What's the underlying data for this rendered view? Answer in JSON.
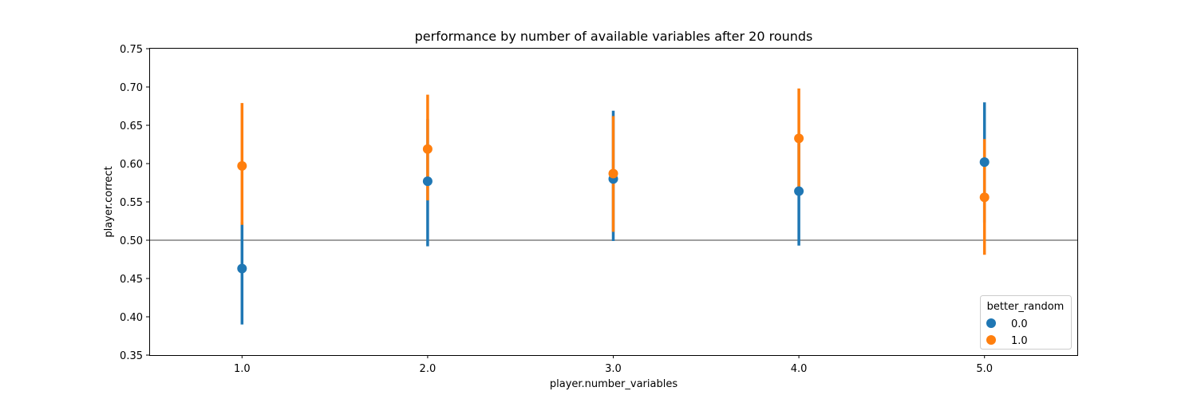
{
  "chart_data": {
    "type": "scatter",
    "title": "performance by number of available variables after 20 rounds",
    "xlabel": "player.number_variables",
    "ylabel": "player.correct",
    "categories": [
      "1.0",
      "2.0",
      "3.0",
      "4.0",
      "5.0"
    ],
    "ylim": [
      0.35,
      0.75
    ],
    "yticks": [
      "0.35",
      "0.40",
      "0.45",
      "0.50",
      "0.55",
      "0.60",
      "0.65",
      "0.70",
      "0.75"
    ],
    "reference_line": 0.5,
    "grid": false,
    "legend": {
      "title": "better_random",
      "placement": "lower right"
    },
    "series": [
      {
        "name": "0.0",
        "color": "#1f77b4",
        "values": [
          0.463,
          0.577,
          0.58,
          0.564,
          0.602
        ],
        "ci_low": [
          0.39,
          0.492,
          0.499,
          0.493,
          0.523
        ],
        "ci_high": [
          0.524,
          0.658,
          0.669,
          0.634,
          0.68
        ]
      },
      {
        "name": "1.0",
        "color": "#ff7f0e",
        "values": [
          0.597,
          0.619,
          0.587,
          0.633,
          0.556
        ],
        "ci_low": [
          0.52,
          0.552,
          0.511,
          0.563,
          0.481
        ],
        "ci_high": [
          0.679,
          0.69,
          0.662,
          0.698,
          0.632
        ]
      }
    ]
  }
}
